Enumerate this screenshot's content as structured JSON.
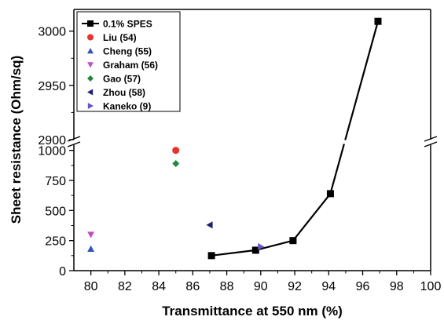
{
  "chart_data": {
    "type": "scatter",
    "xlabel": "Transmittance at 550 nm (%)",
    "ylabel": "Sheet resistance (Ohm/sq)",
    "xlim": [
      79,
      100
    ],
    "y_break": {
      "lower_range": [
        0,
        1050
      ],
      "upper_range": [
        2900,
        3020
      ],
      "marker": "//"
    },
    "x_ticks": [
      "80",
      "82",
      "84",
      "86",
      "88",
      "90",
      "92",
      "94",
      "96",
      "98",
      "100"
    ],
    "y_ticks_lower": [
      "0",
      "250",
      "500",
      "750",
      "1000"
    ],
    "y_ticks_upper": [
      "2900",
      "2950",
      "3000"
    ],
    "legend_position": "top-left",
    "series": [
      {
        "name": "0.1% SPES",
        "color": "#000000",
        "marker": "square",
        "line": true,
        "points": [
          {
            "x": 87.1,
            "y": 125
          },
          {
            "x": 89.7,
            "y": 170
          },
          {
            "x": 91.9,
            "y": 250
          },
          {
            "x": 94.1,
            "y": 640
          },
          {
            "x": 96.9,
            "y": 3009
          }
        ]
      },
      {
        "name": "Liu (54)",
        "color": "#e8322b",
        "marker": "circle",
        "line": false,
        "points": [
          {
            "x": 85.0,
            "y": 1000
          }
        ]
      },
      {
        "name": "Cheng (55)",
        "color": "#3355bb",
        "marker": "triangle-up",
        "line": false,
        "points": [
          {
            "x": 80.0,
            "y": 180
          }
        ]
      },
      {
        "name": "Graham (56)",
        "color": "#c050c0",
        "marker": "triangle-down",
        "line": false,
        "points": [
          {
            "x": 80.0,
            "y": 300
          }
        ]
      },
      {
        "name": "Gao (57)",
        "color": "#1e8a3c",
        "marker": "diamond",
        "line": false,
        "points": [
          {
            "x": 85.0,
            "y": 890
          }
        ]
      },
      {
        "name": "Zhou (58)",
        "color": "#1f1f6e",
        "marker": "triangle-left",
        "line": false,
        "points": [
          {
            "x": 87.0,
            "y": 380
          }
        ]
      },
      {
        "name": "Kaneko (9)",
        "color": "#6655cc",
        "marker": "triangle-right",
        "line": false,
        "points": [
          {
            "x": 90.0,
            "y": 200
          }
        ]
      }
    ]
  }
}
